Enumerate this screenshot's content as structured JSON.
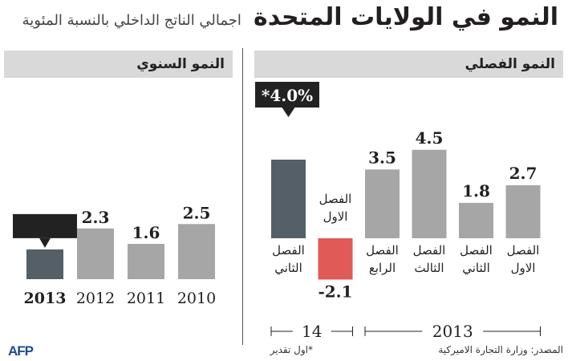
{
  "title": "النمو في الولايات المتحدة",
  "subtitle": "اجمالي الناتج الداخلي بالنسبة المئوية",
  "colors": {
    "highlight": "#555f68",
    "regular": "#a6a6a6",
    "negative": "#e05a58",
    "header_bg": "#d9d9d9",
    "callout": "#222222"
  },
  "chart_data": [
    {
      "type": "bar",
      "title": "النمو السنوي",
      "categories": [
        "2013",
        "2012",
        "2011",
        "2010"
      ],
      "values": [
        null,
        2.3,
        1.6,
        2.5
      ],
      "value_labels": [
        "",
        "2.3",
        "1.6",
        "2.5"
      ],
      "highlight_index": 0,
      "ylim": [
        0,
        4.5
      ]
    },
    {
      "type": "bar",
      "title": "النمو الفصلي",
      "categories": [
        "الفصل الثاني",
        "الفصل الاول",
        "الفصل الرابع",
        "الفصل الثالث",
        "الفصل الثاني",
        "الفصل الاول"
      ],
      "values": [
        4.0,
        -2.1,
        3.5,
        4.5,
        1.8,
        2.7
      ],
      "value_labels": [
        "*4.0%",
        "-2.1",
        "3.5",
        "4.5",
        "1.8",
        "2.7"
      ],
      "highlight_index": 0,
      "negative_index": 1,
      "groups": [
        {
          "label": "14",
          "from": 0,
          "to": 1
        },
        {
          "label": "2013",
          "from": 2,
          "to": 5
        }
      ],
      "ylim": [
        -2.5,
        4.5
      ]
    }
  ],
  "footnote": "*اول تقدير",
  "source": "المصدر: وزارة التجارة الاميركية",
  "logo": "AFP"
}
